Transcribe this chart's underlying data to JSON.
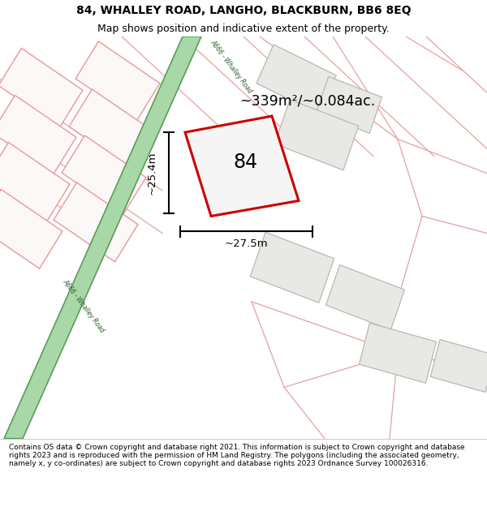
{
  "title": "84, WHALLEY ROAD, LANGHO, BLACKBURN, BB6 8EQ",
  "subtitle": "Map shows position and indicative extent of the property.",
  "footer": "Contains OS data © Crown copyright and database right 2021. This information is subject to Crown copyright and database rights 2023 and is reproduced with the permission of HM Land Registry. The polygons (including the associated geometry, namely x, y co-ordinates) are subject to Crown copyright and database rights 2023 Ordnance Survey 100026316.",
  "map_bg": "#f7f7f5",
  "area_label": "~339m²/~0.084ac.",
  "number_label": "84",
  "dim_width": "~27.5m",
  "dim_height": "~25.4m",
  "road_label_top": "A666 - Whalley Road",
  "road_label_left": "A666 - Whalley Road",
  "road_color": "#a8d8a8",
  "road_border": "#5a9c5a",
  "main_plot_color": "#cc0000",
  "pink_edge": "#e8a0a0",
  "pink_fill": "#fdf8f8",
  "gray_fill": "#e8e8e4",
  "gray_edge": "#b8b8b4",
  "title_fontsize": 10,
  "subtitle_fontsize": 9,
  "footer_fontsize": 6.5
}
